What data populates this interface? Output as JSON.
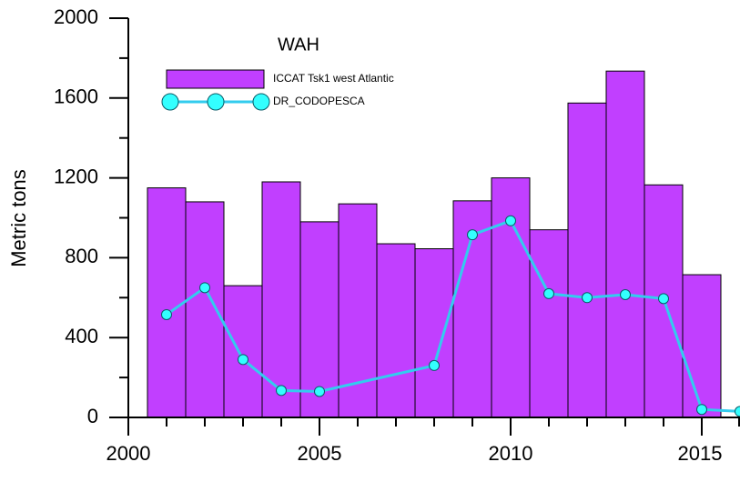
{
  "chart_data": {
    "type": "bar",
    "title": "WAH",
    "y_label": "Metric tons",
    "xlim": [
      2000,
      2016
    ],
    "xticks": [
      2000,
      2005,
      2010,
      2015
    ],
    "ylim": [
      0,
      2000
    ],
    "yticks": [
      0,
      400,
      800,
      1200,
      1600,
      2000
    ],
    "series": [
      {
        "name": "ICCAT Tsk1 west Atlantic",
        "type": "bar",
        "color": "#c13fff",
        "x": [
          2001,
          2002,
          2003,
          2004,
          2005,
          2006,
          2007,
          2008,
          2009,
          2010,
          2011,
          2012,
          2013,
          2014,
          2015
        ],
        "values": [
          1150,
          1080,
          660,
          1180,
          980,
          1070,
          870,
          845,
          1085,
          1200,
          940,
          1575,
          1735,
          1165,
          715
        ]
      },
      {
        "name": "DR_CODOPESCA",
        "type": "line",
        "color": "#33ccee",
        "marker_color": "#33ffff",
        "x": [
          2001,
          2002,
          2003,
          2004,
          2005,
          2008,
          2009,
          2010,
          2011,
          2012,
          2013,
          2014,
          2015,
          2016
        ],
        "values": [
          515,
          650,
          290,
          135,
          130,
          260,
          915,
          985,
          620,
          600,
          615,
          595,
          40,
          30
        ]
      }
    ]
  }
}
